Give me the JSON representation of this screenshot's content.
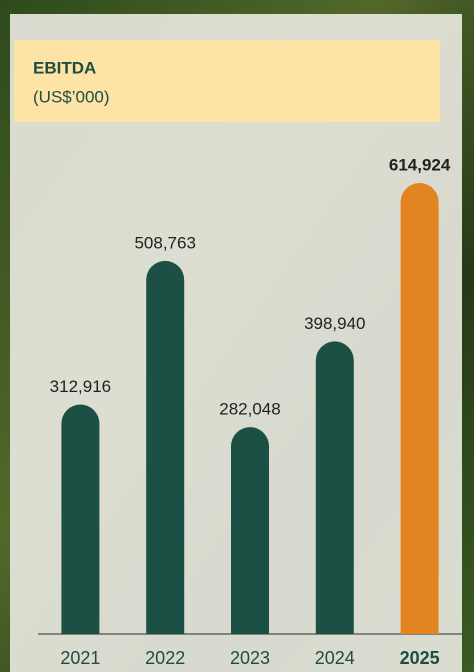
{
  "chart_data": {
    "type": "bar",
    "title": "EBITDA",
    "subtitle": "(US$’000)",
    "categories": [
      "2021",
      "2022",
      "2023",
      "2024",
      "2025"
    ],
    "values": [
      312916,
      508763,
      282048,
      398940,
      614924
    ],
    "value_labels": [
      "312,916",
      "508,763",
      "282,048",
      "398,940",
      "614,924"
    ],
    "colors": [
      "#1d5045",
      "#1d5045",
      "#1d5045",
      "#1d5045",
      "#e2841f"
    ]
  }
}
